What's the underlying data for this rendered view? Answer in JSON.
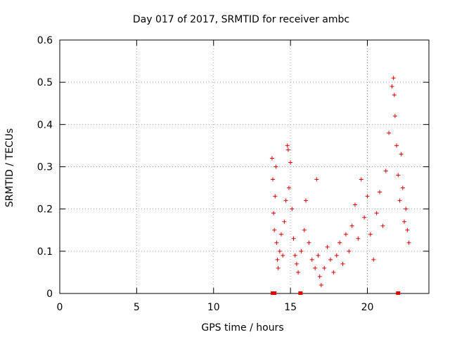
{
  "chart_data": {
    "type": "scatter",
    "title": "Day 017 of 2017, SRMTID for receiver ambc",
    "xlabel": "GPS time / hours",
    "ylabel": "SRMTID / TECUs",
    "xlim": [
      0,
      24
    ],
    "ylim": [
      0,
      0.6
    ],
    "xticks": [
      0,
      5,
      10,
      15,
      20
    ],
    "yticks": [
      0,
      0.1,
      0.2,
      0.3,
      0.4,
      0.5,
      0.6
    ],
    "xtick_labels": [
      "0",
      "5",
      "10",
      "15",
      "20"
    ],
    "ytick_labels": [
      "0",
      "0.1",
      "0.2",
      "0.3",
      "0.4",
      "0.5",
      "0.6"
    ],
    "grid": true,
    "legend": "none",
    "marker": "plus",
    "series_color": "#e00000",
    "series": [
      {
        "points": [
          [
            13.8,
            0.32
          ],
          [
            13.85,
            0.27
          ],
          [
            13.9,
            0.19
          ],
          [
            13.95,
            0.15
          ],
          [
            14.0,
            0.23
          ],
          [
            14.05,
            0.3
          ],
          [
            14.1,
            0.12
          ],
          [
            14.15,
            0.08
          ],
          [
            14.2,
            0.06
          ],
          [
            14.3,
            0.1
          ],
          [
            14.4,
            0.14
          ],
          [
            14.5,
            0.09
          ],
          [
            14.6,
            0.17
          ],
          [
            14.7,
            0.22
          ],
          [
            14.8,
            0.35
          ],
          [
            14.85,
            0.34
          ],
          [
            14.9,
            0.25
          ],
          [
            15.0,
            0.31
          ],
          [
            15.1,
            0.2
          ],
          [
            15.2,
            0.13
          ],
          [
            15.3,
            0.09
          ],
          [
            15.4,
            0.07
          ],
          [
            15.5,
            0.05
          ],
          [
            15.7,
            0.1
          ],
          [
            15.9,
            0.15
          ],
          [
            16.0,
            0.22
          ],
          [
            16.2,
            0.12
          ],
          [
            16.4,
            0.08
          ],
          [
            16.6,
            0.06
          ],
          [
            16.7,
            0.27
          ],
          [
            16.8,
            0.09
          ],
          [
            16.9,
            0.04
          ],
          [
            17.0,
            0.02
          ],
          [
            17.2,
            0.06
          ],
          [
            17.4,
            0.11
          ],
          [
            17.6,
            0.08
          ],
          [
            17.8,
            0.05
          ],
          [
            18.0,
            0.09
          ],
          [
            18.2,
            0.12
          ],
          [
            18.4,
            0.07
          ],
          [
            18.6,
            0.14
          ],
          [
            18.8,
            0.1
          ],
          [
            19.0,
            0.16
          ],
          [
            19.2,
            0.21
          ],
          [
            19.4,
            0.13
          ],
          [
            19.6,
            0.27
          ],
          [
            19.8,
            0.18
          ],
          [
            20.0,
            0.23
          ],
          [
            20.2,
            0.14
          ],
          [
            20.4,
            0.08
          ],
          [
            20.6,
            0.19
          ],
          [
            20.8,
            0.24
          ],
          [
            21.0,
            0.16
          ],
          [
            21.2,
            0.29
          ],
          [
            21.4,
            0.38
          ],
          [
            21.6,
            0.49
          ],
          [
            21.7,
            0.51
          ],
          [
            21.75,
            0.47
          ],
          [
            21.8,
            0.42
          ],
          [
            21.9,
            0.35
          ],
          [
            22.0,
            0.28
          ],
          [
            22.1,
            0.22
          ],
          [
            22.2,
            0.33
          ],
          [
            22.3,
            0.25
          ],
          [
            22.4,
            0.17
          ],
          [
            22.5,
            0.2
          ],
          [
            22.6,
            0.15
          ],
          [
            22.7,
            0.12
          ]
        ]
      }
    ],
    "markers_at_zero": [
      13.85,
      13.95,
      15.65,
      22.0
    ]
  }
}
